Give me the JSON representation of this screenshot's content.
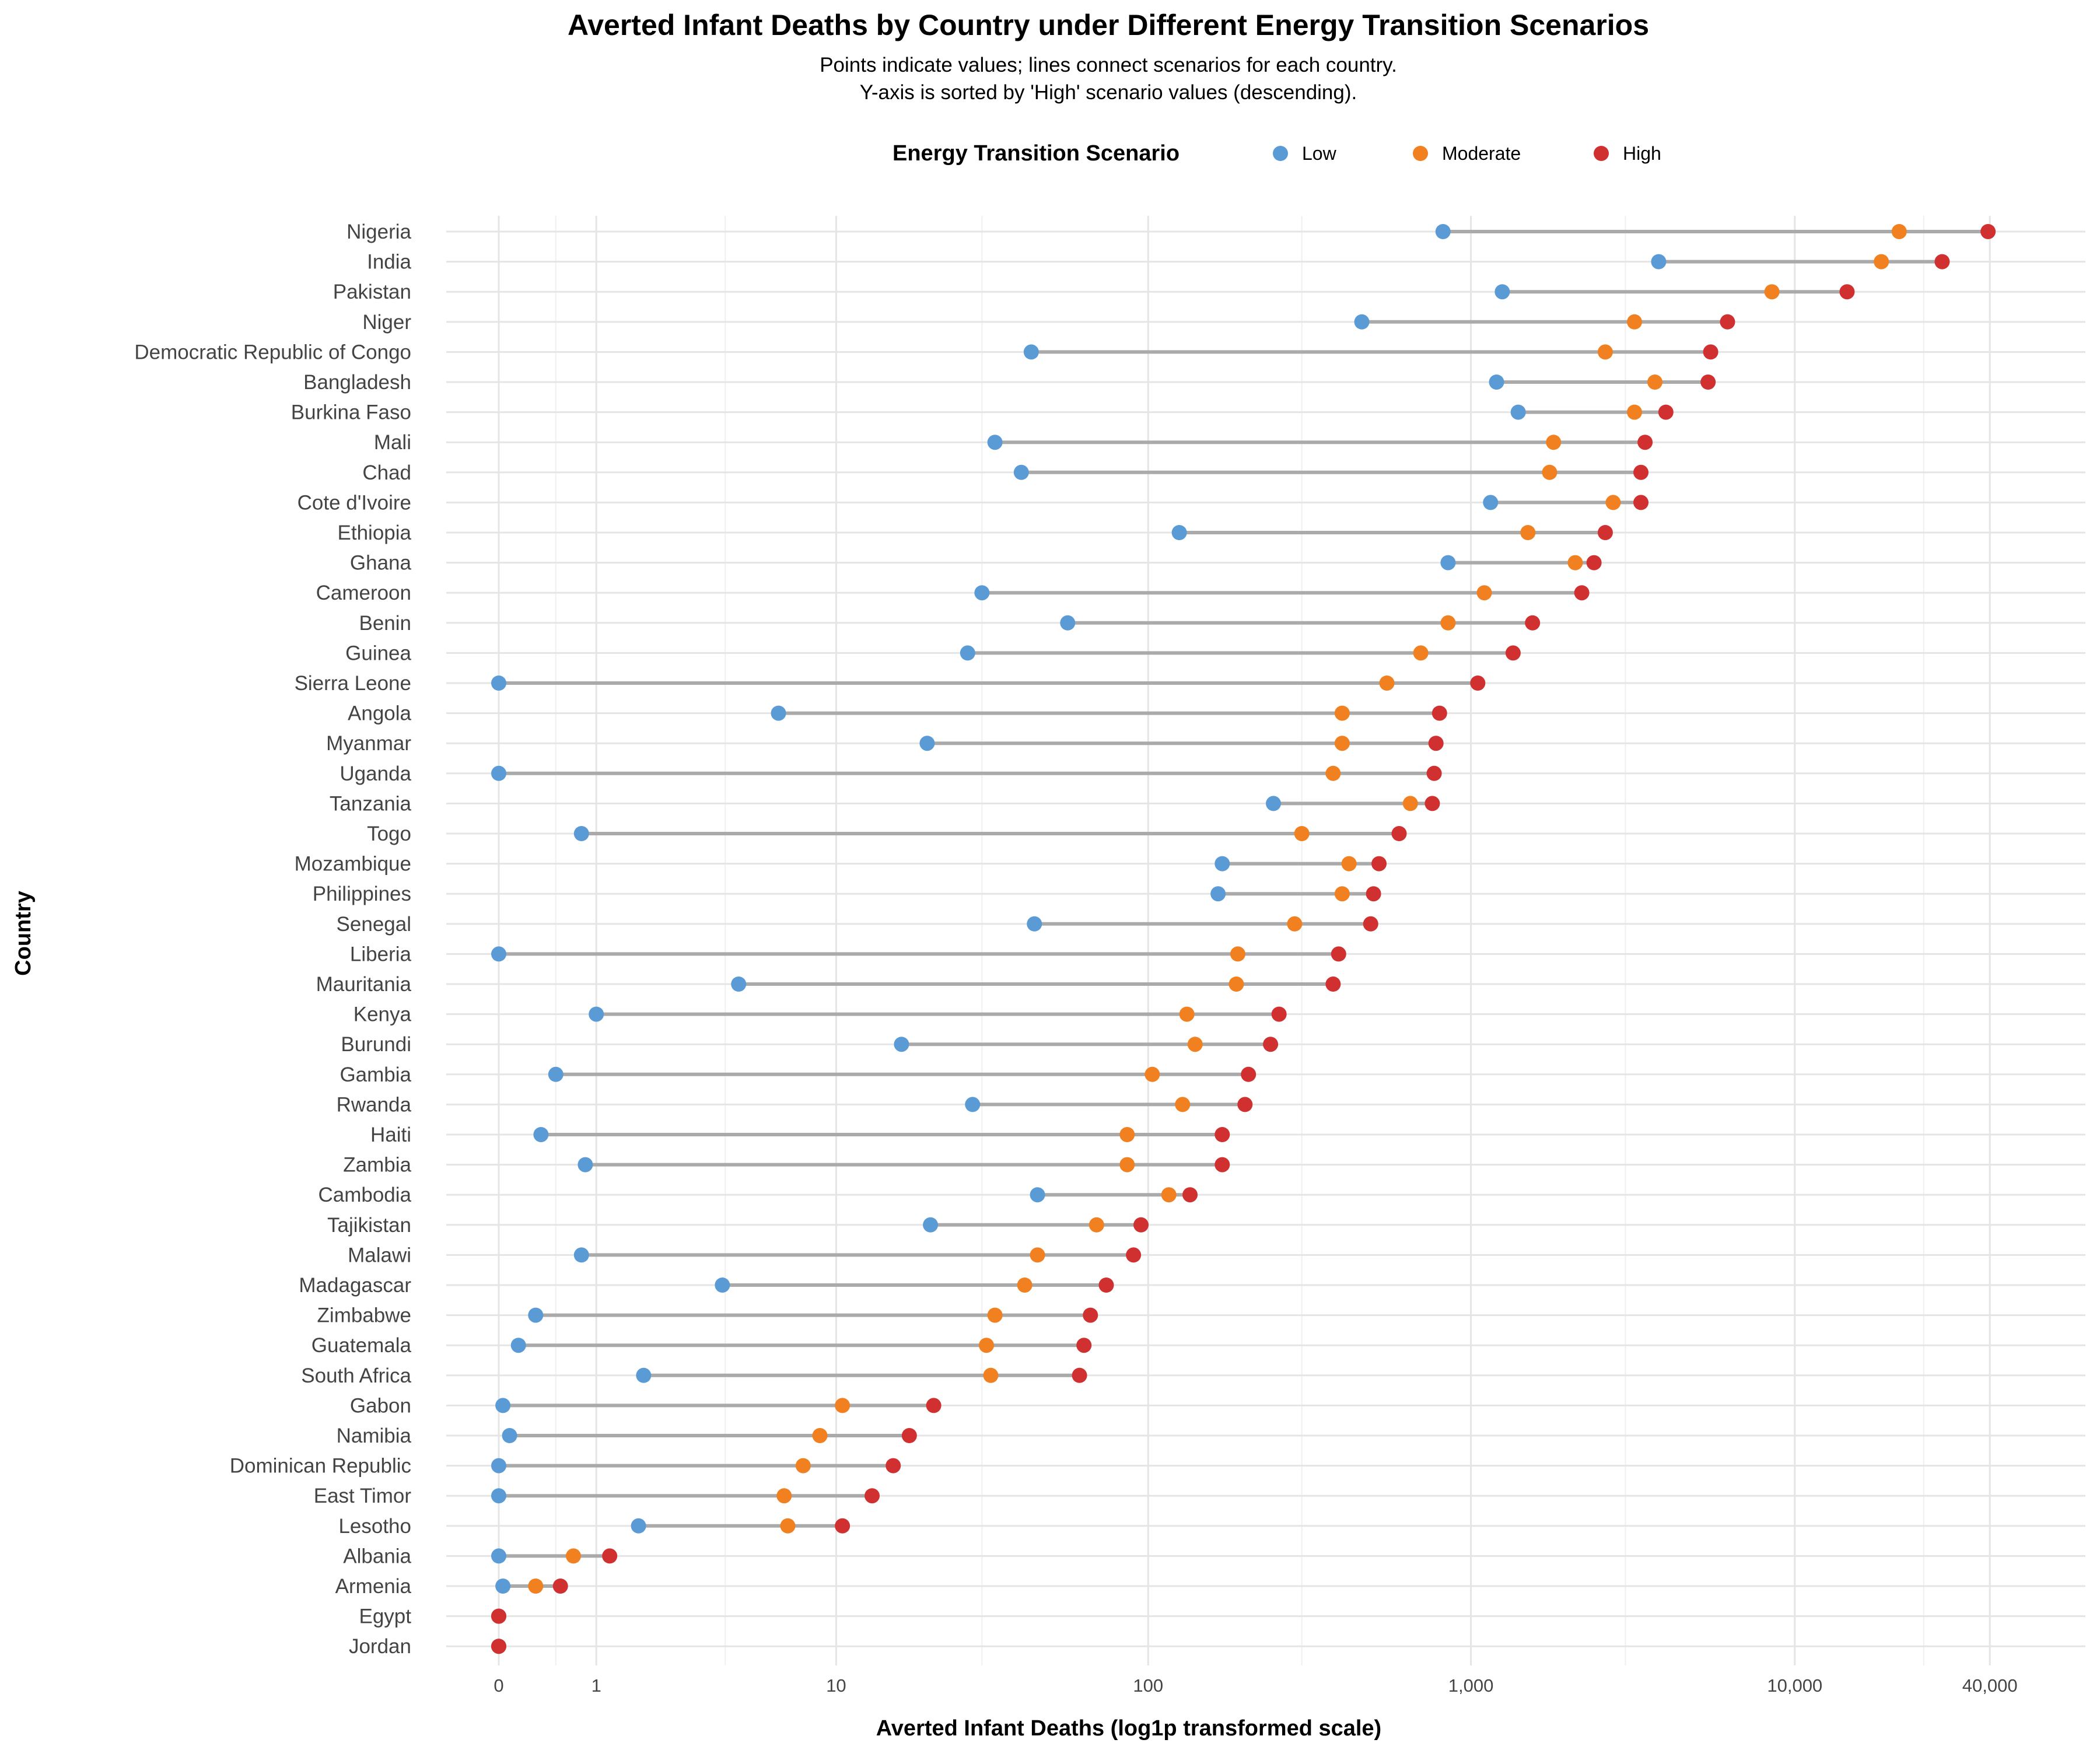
{
  "chart_data": {
    "type": "dumbbell",
    "title": "Averted Infant Deaths by Country under Different Energy Transition Scenarios",
    "subtitle_lines": [
      "Points indicate values; lines connect scenarios for each country.",
      "Y-axis is sorted by 'High' scenario values (descending)."
    ],
    "xlabel": "Averted Infant Deaths (log1p transformed scale)",
    "ylabel": "Country",
    "x_scale": "log1p",
    "xlim": [
      0,
      50000
    ],
    "x_ticks": [
      {
        "value": 0,
        "label": "0"
      },
      {
        "value": 1,
        "label": "1"
      },
      {
        "value": 10,
        "label": "10"
      },
      {
        "value": 100,
        "label": "100"
      },
      {
        "value": 1000,
        "label": "1,000"
      },
      {
        "value": 10000,
        "label": "10,000"
      },
      {
        "value": 40000,
        "label": "40,000"
      }
    ],
    "x_minor_ticks": [
      0.5,
      4,
      30,
      300,
      3000,
      25000
    ],
    "grid": true,
    "legend": {
      "title": "Energy Transition Scenario",
      "placement": "top",
      "entries": [
        {
          "name": "Low",
          "color": "#5b9bd5"
        },
        {
          "name": "Moderate",
          "color": "#f08020"
        },
        {
          "name": "High",
          "color": "#d03030"
        }
      ]
    },
    "connector_color": "#aaaaaa",
    "categories": [
      "Nigeria",
      "India",
      "Pakistan",
      "Niger",
      "Democratic Republic of Congo",
      "Bangladesh",
      "Burkina Faso",
      "Mali",
      "Chad",
      "Cote d'Ivoire",
      "Ethiopia",
      "Ghana",
      "Cameroon",
      "Benin",
      "Guinea",
      "Sierra Leone",
      "Angola",
      "Myanmar",
      "Uganda",
      "Tanzania",
      "Togo",
      "Mozambique",
      "Philippines",
      "Senegal",
      "Liberia",
      "Mauritania",
      "Kenya",
      "Burundi",
      "Gambia",
      "Rwanda",
      "Haiti",
      "Zambia",
      "Cambodia",
      "Tajikistan",
      "Malawi",
      "Madagascar",
      "Zimbabwe",
      "Guatemala",
      "South Africa",
      "Gabon",
      "Namibia",
      "Dominican Republic",
      "East Timor",
      "Lesotho",
      "Albania",
      "Armenia",
      "Egypt",
      "Jordan"
    ],
    "series": [
      {
        "name": "Low",
        "values": [
          820,
          3800,
          1250,
          460,
          43,
          1200,
          1400,
          33,
          40,
          1150,
          125,
          850,
          30,
          56,
          27,
          0,
          6.3,
          20,
          0,
          245,
          0.8,
          170,
          165,
          44,
          0,
          4.5,
          1.0,
          16.5,
          0.5,
          28,
          0.35,
          0.85,
          45,
          20.5,
          0.8,
          3.9,
          0.3,
          0.15,
          1.8,
          0.03,
          0.08,
          0,
          0,
          1.7,
          0,
          0.03,
          0,
          0
        ]
      },
      {
        "name": "Moderate",
        "values": [
          21000,
          18500,
          8500,
          3200,
          2600,
          3700,
          3200,
          1800,
          1750,
          2750,
          1500,
          2100,
          1100,
          850,
          700,
          550,
          400,
          400,
          375,
          650,
          300,
          420,
          400,
          285,
          190,
          188,
          132,
          140,
          103,
          128,
          86,
          86,
          116,
          69,
          45,
          41,
          33,
          31,
          32,
          10.5,
          8.8,
          7.7,
          6.6,
          6.8,
          0.7,
          0.3,
          0,
          0
        ]
      },
      {
        "name": "High",
        "values": [
          39500,
          28500,
          14500,
          6200,
          5500,
          5400,
          4000,
          3450,
          3350,
          3350,
          2600,
          2400,
          2200,
          1550,
          1350,
          1050,
          800,
          780,
          770,
          760,
          600,
          520,
          500,
          490,
          390,
          375,
          255,
          240,
          205,
          200,
          170,
          170,
          135,
          95,
          90,
          74,
          66,
          63,
          61,
          21,
          17.5,
          15.5,
          13.2,
          10.5,
          1.2,
          0.55,
          0,
          0
        ]
      }
    ]
  }
}
